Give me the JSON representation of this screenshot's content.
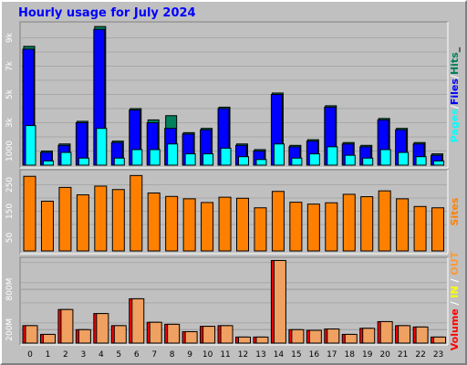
{
  "title": "Hourly usage for July 2024",
  "colors": {
    "hits": "#00805c",
    "files": "#0000ff",
    "pages": "#00ffff",
    "sites": "#ff8000",
    "volume": "#ff0000",
    "in": "#ffff00",
    "out": "#ff9933",
    "out_fill": "#f0a060"
  },
  "chart_data": [
    {
      "type": "bar",
      "categories": [
        "0",
        "1",
        "2",
        "3",
        "4",
        "5",
        "6",
        "7",
        "8",
        "9",
        "10",
        "11",
        "12",
        "13",
        "14",
        "15",
        "16",
        "17",
        "18",
        "19",
        "20",
        "21",
        "22",
        "23"
      ],
      "ylim": [
        0,
        10000
      ],
      "yticks": [
        {
          "value": 1000,
          "label": "1000"
        },
        {
          "value": 3000,
          "label": "3k"
        },
        {
          "value": 5000,
          "label": "5k"
        },
        {
          "value": 7000,
          "label": "7k"
        },
        {
          "value": 9000,
          "label": "9k"
        }
      ],
      "side_label": [
        {
          "text": "Pages",
          "color": "#00ffff"
        },
        {
          "text": "/",
          "color": "#ffffff"
        },
        {
          "text": "Files",
          "color": "#0000ff"
        },
        {
          "text": "/",
          "color": "#ffffff"
        },
        {
          "text": "Hits",
          "color": "#00805c"
        },
        {
          "text": "_",
          "color": "#000000"
        }
      ],
      "series": [
        {
          "name": "Hits",
          "values": [
            8400,
            1000,
            1500,
            3100,
            9800,
            1700,
            4000,
            3200,
            3500,
            2300,
            2600,
            4100,
            1500,
            1100,
            5100,
            1400,
            1800,
            4200,
            1600,
            1400,
            3300,
            2600,
            1600,
            800
          ]
        },
        {
          "name": "Files",
          "values": [
            8200,
            900,
            1400,
            3000,
            9600,
            1600,
            3900,
            3000,
            2600,
            2200,
            2500,
            4000,
            1400,
            1000,
            5000,
            1300,
            1700,
            4100,
            1500,
            1300,
            3200,
            2500,
            1500,
            700
          ]
        },
        {
          "name": "Pages",
          "values": [
            2800,
            300,
            900,
            500,
            2600,
            500,
            1100,
            1100,
            1500,
            800,
            800,
            1200,
            600,
            400,
            1500,
            500,
            800,
            1300,
            700,
            500,
            1100,
            900,
            600,
            300
          ]
        }
      ]
    },
    {
      "type": "bar",
      "categories": [
        "0",
        "1",
        "2",
        "3",
        "4",
        "5",
        "6",
        "7",
        "8",
        "9",
        "10",
        "11",
        "12",
        "13",
        "14",
        "15",
        "16",
        "17",
        "18",
        "19",
        "20",
        "21",
        "22",
        "23"
      ],
      "ylim": [
        0,
        300
      ],
      "yticks": [
        {
          "value": 50,
          "label": "50"
        },
        {
          "value": 150,
          "label": "150"
        },
        {
          "value": 250,
          "label": "250"
        }
      ],
      "side_label": [
        {
          "text": "Sites",
          "color": "#ff8000"
        }
      ],
      "series": [
        {
          "name": "Sites",
          "values": [
            282,
            188,
            240,
            212,
            245,
            232,
            285,
            219,
            206,
            197,
            183,
            203,
            199,
            163,
            225,
            184,
            177,
            182,
            214,
            205,
            227,
            197,
            168,
            163
          ]
        }
      ]
    },
    {
      "type": "bar",
      "categories": [
        "0",
        "1",
        "2",
        "3",
        "4",
        "5",
        "6",
        "7",
        "8",
        "9",
        "10",
        "11",
        "12",
        "13",
        "14",
        "15",
        "16",
        "17",
        "18",
        "19",
        "20",
        "21",
        "22",
        "23"
      ],
      "ylim": [
        0,
        1250
      ],
      "yticks": [
        {
          "value": 200,
          "label": "200M"
        },
        {
          "value": 800,
          "label": "800M"
        }
      ],
      "side_label": [
        {
          "text": "Volume",
          "color": "#ff0000"
        },
        {
          "text": " / ",
          "color": "#ffffff"
        },
        {
          "text": "IN",
          "color": "#ffff00"
        },
        {
          "text": " / ",
          "color": "#ffffff"
        },
        {
          "text": "OUT",
          "color": "#ff9933"
        }
      ],
      "series": [
        {
          "name": "Volume",
          "values": [
            260,
            130,
            500,
            200,
            440,
            260,
            660,
            310,
            280,
            170,
            250,
            260,
            90,
            90,
            1230,
            200,
            190,
            210,
            130,
            220,
            320,
            260,
            240,
            90
          ]
        },
        {
          "name": "Out",
          "values": [
            260,
            130,
            500,
            200,
            440,
            260,
            660,
            310,
            280,
            170,
            250,
            260,
            90,
            90,
            1230,
            200,
            190,
            210,
            130,
            220,
            320,
            260,
            240,
            90
          ]
        }
      ]
    }
  ]
}
